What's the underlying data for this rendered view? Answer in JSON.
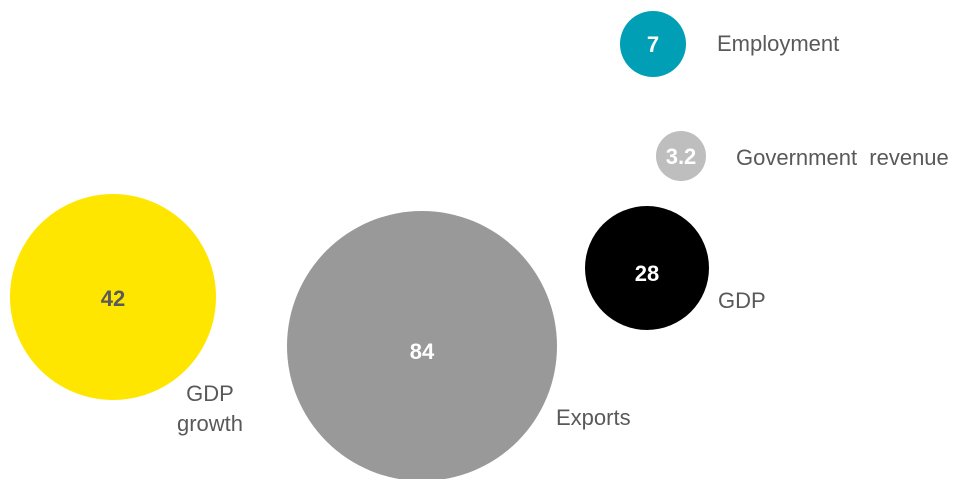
{
  "chart_data": {
    "type": "bubble",
    "series": [
      {
        "label": [
          "Employment"
        ],
        "value": "7",
        "color": "#009fb5",
        "text_color": "#ffffff"
      },
      {
        "label": [
          "Government  revenue"
        ],
        "value": "3.2",
        "color": "#bebebe",
        "text_color": "#ffffff"
      },
      {
        "label": [
          "GDP"
        ],
        "value": "28",
        "color": "#000000",
        "text_color": "#ffffff"
      },
      {
        "label": [
          "GDP",
          "growth"
        ],
        "value": "42",
        "color": "#ffe600",
        "text_color": "#5a5a5a"
      },
      {
        "label": [
          "Exports"
        ],
        "value": "84",
        "color": "#999999",
        "text_color": "#ffffff"
      }
    ]
  }
}
